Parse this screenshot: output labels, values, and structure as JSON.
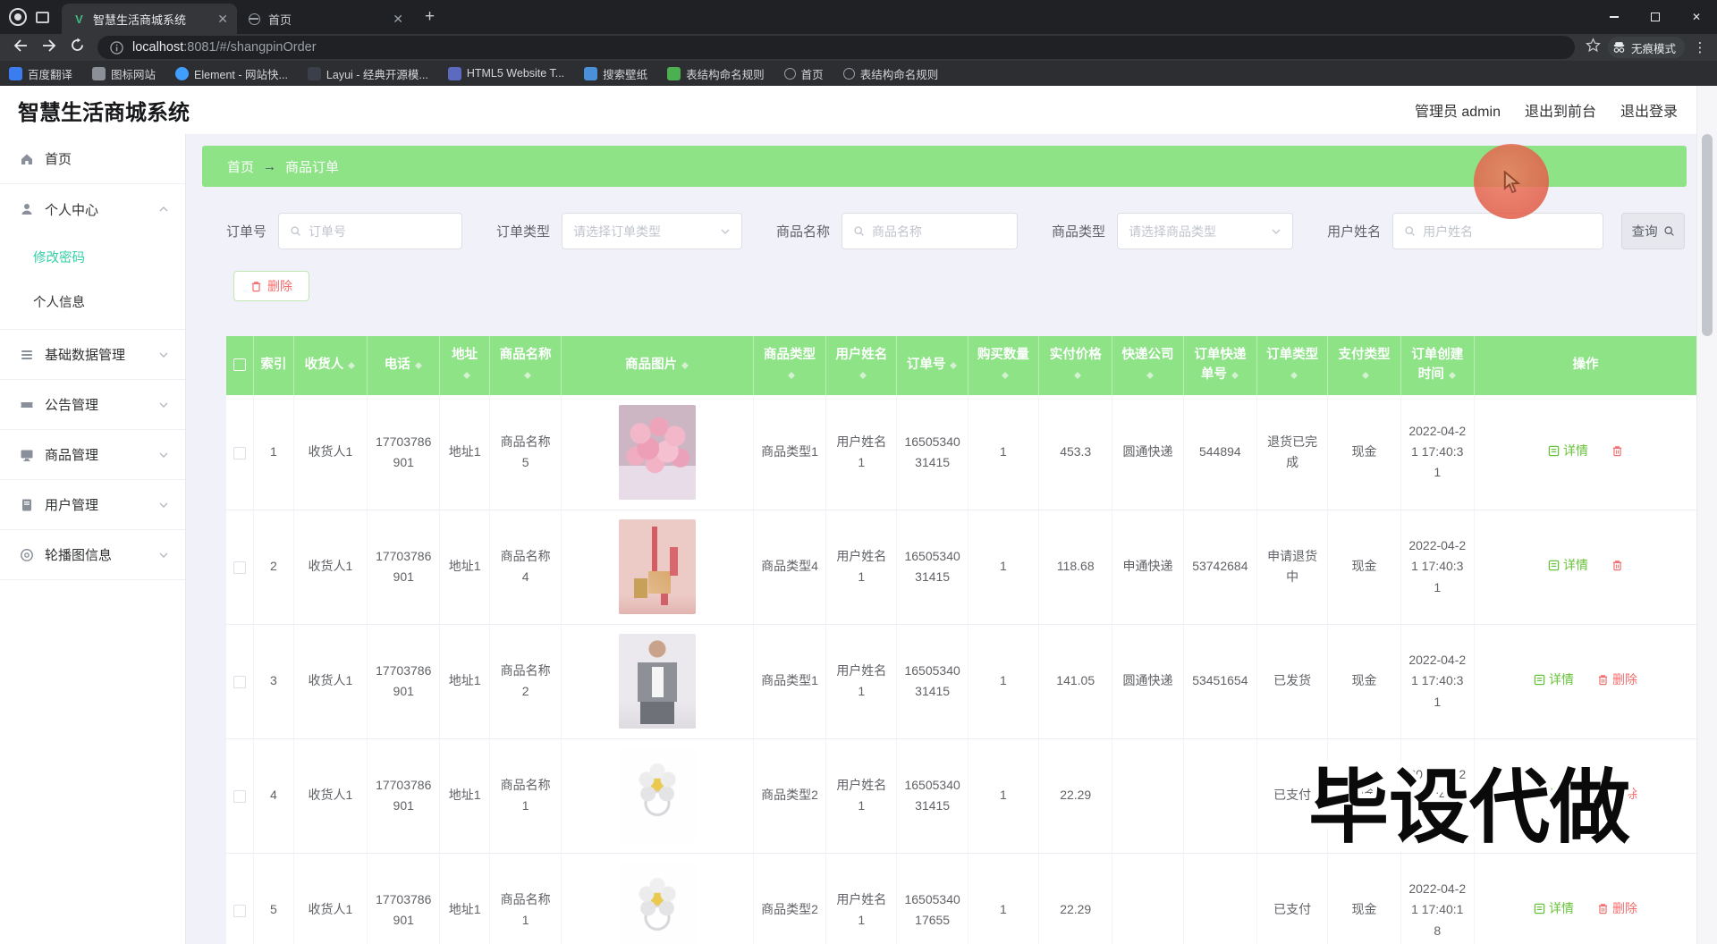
{
  "browser": {
    "tabs": [
      {
        "title": "智慧生活商城系统",
        "icon": "vue"
      },
      {
        "title": "首页",
        "icon": "globe"
      }
    ],
    "url_host": "localhost",
    "url_path": ":8081/#/shangpinOrder",
    "incognito_label": "无痕模式",
    "bookmarks": [
      {
        "label": "百度翻译",
        "icon": "translate"
      },
      {
        "label": "图标网站",
        "icon": "folder"
      },
      {
        "label": "Element - 网站快...",
        "icon": "element"
      },
      {
        "label": "Layui - 经典开源模...",
        "icon": "layui"
      },
      {
        "label": "HTML5 Website T...",
        "icon": "html5"
      },
      {
        "label": "搜索壁纸",
        "icon": "wallpaper"
      },
      {
        "label": "表结构命名规则",
        "icon": "table-doc"
      },
      {
        "label": "首页",
        "icon": "globe"
      },
      {
        "label": "表结构命名规则",
        "icon": "globe"
      }
    ]
  },
  "header": {
    "title": "智慧生活商城系统",
    "admin_label": "管理员 admin",
    "links": [
      "退出到前台",
      "退出登录"
    ]
  },
  "sidebar": {
    "items": [
      {
        "label": "首页"
      },
      {
        "label": "个人中心"
      },
      {
        "label": "修改密码"
      },
      {
        "label": "个人信息"
      },
      {
        "label": "基础数据管理"
      },
      {
        "label": "公告管理"
      },
      {
        "label": "商品管理"
      },
      {
        "label": "用户管理"
      },
      {
        "label": "轮播图信息"
      }
    ]
  },
  "breadcrumb": {
    "home": "首页",
    "arrow": "→",
    "current": "商品订单"
  },
  "filters": {
    "order_no": {
      "label": "订单号",
      "placeholder": "订单号"
    },
    "order_type": {
      "label": "订单类型",
      "placeholder": "请选择订单类型"
    },
    "product_name": {
      "label": "商品名称",
      "placeholder": "商品名称"
    },
    "product_type": {
      "label": "商品类型",
      "placeholder": "请选择商品类型"
    },
    "user_name": {
      "label": "用户姓名",
      "placeholder": "用户姓名"
    },
    "search_label": "查询"
  },
  "toolbar": {
    "delete_label": "删除"
  },
  "table": {
    "columns": [
      "",
      "索引",
      "收货人",
      "电话",
      "地址",
      "商品名称",
      "商品图片",
      "商品类型",
      "用户姓名",
      "订单号",
      "购买数量",
      "实付价格",
      "快递公司",
      "订单快递单号",
      "订单类型",
      "支付类型",
      "订单创建时间",
      "操作"
    ],
    "ops": {
      "detail_label": "详情",
      "delete_label": "删除"
    },
    "rows": [
      {
        "index": "1",
        "consignee": "收货人1",
        "phone": "17703786901",
        "address": "地址1",
        "product_name": "商品名称5",
        "product_image": "bouquet-pink-roses",
        "product_type": "商品类型1",
        "user_name": "用户姓名1",
        "order_no": "1650534031415",
        "quantity": "1",
        "price": "453.3",
        "courier": "圆通快递",
        "tracking_no": "544894",
        "order_type": "退货已完成",
        "pay_type": "现金",
        "created": "2022-04-21 17:40:31",
        "show_delete_label": false
      },
      {
        "index": "2",
        "consignee": "收货人1",
        "phone": "17703786901",
        "address": "地址1",
        "product_name": "商品名称4",
        "product_image": "pink-candles",
        "product_type": "商品类型4",
        "user_name": "用户姓名1",
        "order_no": "1650534031415",
        "quantity": "1",
        "price": "118.68",
        "courier": "申通快递",
        "tracking_no": "53742684",
        "order_type": "申请退货中",
        "pay_type": "现金",
        "created": "2022-04-21 17:40:31",
        "show_delete_label": false
      },
      {
        "index": "3",
        "consignee": "收货人1",
        "phone": "17703786901",
        "address": "地址1",
        "product_name": "商品名称2",
        "product_image": "man-grey-jacket",
        "product_type": "商品类型1",
        "user_name": "用户姓名1",
        "order_no": "1650534031415",
        "quantity": "1",
        "price": "141.05",
        "courier": "圆通快递",
        "tracking_no": "53451654",
        "order_type": "已发货",
        "pay_type": "现金",
        "created": "2022-04-21 17:40:31",
        "show_delete_label": true
      },
      {
        "index": "4",
        "consignee": "收货人1",
        "phone": "17703786901",
        "address": "地址1",
        "product_name": "商品名称1",
        "product_image": "flower-ring",
        "product_type": "商品类型2",
        "user_name": "用户姓名1",
        "order_no": "1650534031415",
        "quantity": "1",
        "price": "22.29",
        "courier": "",
        "tracking_no": "",
        "order_type": "已支付",
        "pay_type": "现金",
        "created": "2022-04-21 17:40:31",
        "show_delete_label": true
      },
      {
        "index": "5",
        "consignee": "收货人1",
        "phone": "17703786901",
        "address": "地址1",
        "product_name": "商品名称1",
        "product_image": "flower-ring",
        "product_type": "商品类型2",
        "user_name": "用户姓名1",
        "order_no": "1650534017655",
        "quantity": "1",
        "price": "22.29",
        "courier": "",
        "tracking_no": "",
        "order_type": "已支付",
        "pay_type": "现金",
        "created": "2022-04-21 17:40:18",
        "show_delete_label": true
      }
    ]
  },
  "watermark": "毕设代做"
}
